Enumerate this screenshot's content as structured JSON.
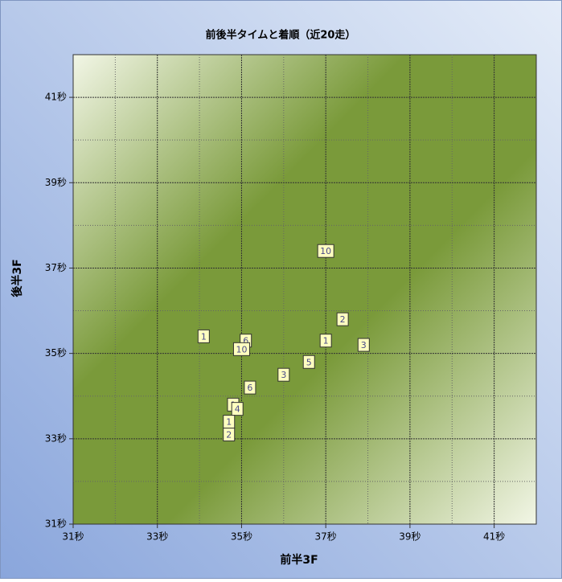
{
  "chart_data": {
    "type": "scatter",
    "title": "前後半タイムと着順（近20走）",
    "x_label": "前半3F",
    "y_label": "後半3F",
    "xlim": [
      31,
      42
    ],
    "ylim": [
      31,
      42
    ],
    "xticks": [
      {
        "value": 31,
        "label": "31秒"
      },
      {
        "value": 33,
        "label": "33秒"
      },
      {
        "value": 35,
        "label": "35秒"
      },
      {
        "value": 37,
        "label": "37秒"
      },
      {
        "value": 39,
        "label": "39秒"
      },
      {
        "value": 41,
        "label": "41秒"
      }
    ],
    "yticks": [
      {
        "value": 31,
        "label": "31秒"
      },
      {
        "value": 33,
        "label": "33秒"
      },
      {
        "value": 35,
        "label": "35秒"
      },
      {
        "value": 37,
        "label": "37秒"
      },
      {
        "value": 39,
        "label": "39秒"
      },
      {
        "value": 41,
        "label": "41秒"
      }
    ],
    "x_minor_ticks": [
      32,
      34,
      36,
      38,
      40
    ],
    "y_minor_ticks": [
      32,
      34,
      36,
      38,
      40
    ],
    "grid": true,
    "series": [
      {
        "color": "#ffffc0",
        "x": [
          34.1,
          37.0,
          37.4,
          37.0,
          37.9,
          35.1,
          35.0,
          36.6,
          36.0,
          35.2,
          34.8,
          34.9,
          34.7,
          34.7
        ],
        "values": [
          35.4,
          37.4,
          35.8,
          35.3,
          35.2,
          35.3,
          35.1,
          34.8,
          34.5,
          34.2,
          33.8,
          33.7,
          33.4,
          33.1
        ],
        "labels": [
          "1",
          "10",
          "2",
          "1",
          "3",
          "6",
          "10",
          "5",
          "3",
          "6",
          "1",
          "4",
          "1",
          "2"
        ]
      }
    ]
  }
}
